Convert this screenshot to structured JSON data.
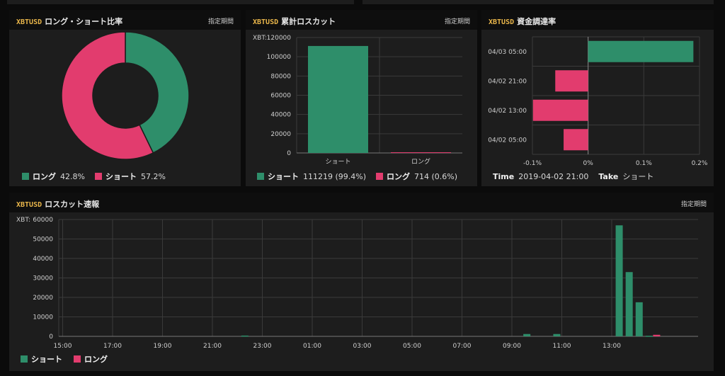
{
  "colors": {
    "long": "#e23c6e",
    "short": "#2e8e6a",
    "grid": "#3a3a3a",
    "symbol": "#e8b54a"
  },
  "ratio_panel": {
    "symbol": "XBTUSD",
    "title": "ロング・ショート比率",
    "period": "指定期間",
    "legend": [
      {
        "name": "ロング",
        "value": "42.8%",
        "color": "#2e8e6a"
      },
      {
        "name": "ショート",
        "value": "57.2%",
        "color": "#e23c6e"
      }
    ],
    "chart_data": {
      "type": "pie",
      "categories": [
        "ロング",
        "ショート"
      ],
      "values": [
        42.8,
        57.2
      ]
    }
  },
  "cumulative_panel": {
    "symbol": "XBTUSD",
    "title": "累計ロスカット",
    "period": "指定期間",
    "y_unit": "XBT:",
    "legend": [
      {
        "name": "ショート",
        "value": "111219 (99.4%)",
        "color": "#2e8e6a"
      },
      {
        "name": "ロング",
        "value": "714 (0.6%)",
        "color": "#e23c6e"
      }
    ],
    "chart_data": {
      "type": "bar",
      "categories": [
        "ショート",
        "ロング"
      ],
      "values": [
        111219,
        714
      ],
      "ylim": [
        0,
        120000
      ],
      "yticks": [
        "0",
        "20000",
        "40000",
        "60000",
        "80000",
        "100000",
        "120000"
      ]
    }
  },
  "funding_panel": {
    "symbol": "XBTUSD",
    "title": "資金調達率",
    "footer": {
      "time_label": "Time",
      "time_value": "2019-04-02 21:00",
      "take_label": "Take",
      "take_value": "ショート"
    },
    "chart_data": {
      "type": "bar",
      "orientation": "horizontal",
      "categories": [
        "04/03 05:00",
        "04/02 21:00",
        "04/02 13:00",
        "04/02 05:00"
      ],
      "values": [
        0.189,
        -0.059,
        -0.099,
        -0.044
      ],
      "xlim": [
        -0.1,
        0.2
      ],
      "xticks": [
        "-0.1%",
        "0%",
        "0.1%",
        "0.2%"
      ]
    }
  },
  "liquidation_panel": {
    "symbol": "XBTUSD",
    "title": "ロスカット速報",
    "period": "指定期間",
    "y_unit": "XBT:",
    "legend": [
      {
        "name": "ショート",
        "color": "#2e8e6a"
      },
      {
        "name": "ロング",
        "color": "#e23c6e"
      }
    ],
    "chart_data": {
      "type": "bar",
      "ylim": [
        0,
        60000
      ],
      "yticks": [
        "0",
        "10000",
        "20000",
        "30000",
        "40000",
        "50000",
        "60000"
      ],
      "xticks": [
        "17:00",
        "19:00",
        "21:00",
        "23:00",
        "01:00",
        "03:00",
        "05:00",
        "07:00",
        "09:00",
        "11:00",
        "13:00",
        "15:00"
      ],
      "series": [
        {
          "name": "ショート",
          "points": [
            [
              22.3,
              400
            ],
            [
              9.6,
              1200
            ],
            [
              10.8,
              1200
            ],
            [
              13.3,
              57000
            ],
            [
              13.7,
              33000
            ],
            [
              14.1,
              17500
            ],
            [
              14.5,
              300
            ]
          ]
        },
        {
          "name": "ロング",
          "points": [
            [
              14.8,
              800
            ]
          ]
        }
      ]
    }
  }
}
